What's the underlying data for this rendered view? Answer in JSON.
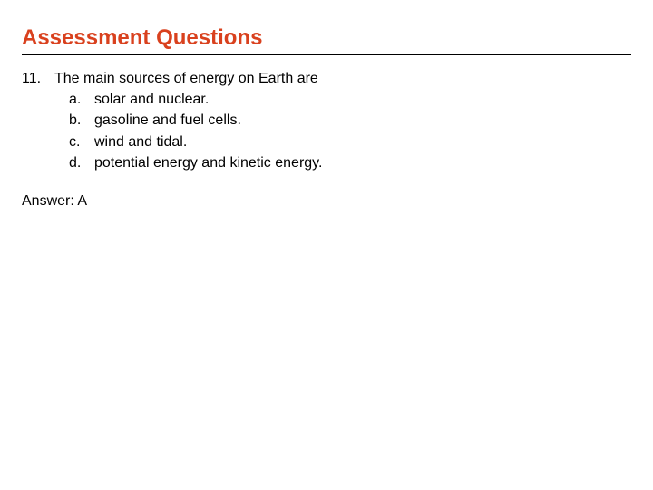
{
  "heading": {
    "text": "Assessment Questions",
    "color": "#d9411e",
    "fontsize": 24,
    "underline_color": "#000000"
  },
  "question": {
    "number": "11.",
    "stem": "The main sources of energy on Earth are",
    "options": [
      {
        "letter": "a.",
        "text": "solar and nuclear."
      },
      {
        "letter": "b.",
        "text": "gasoline and fuel cells."
      },
      {
        "letter": "c.",
        "text": "wind and tidal."
      },
      {
        "letter": "d.",
        "text": "potential energy and kinetic energy."
      }
    ]
  },
  "answer": {
    "label": "Answer: A"
  },
  "styles": {
    "body_bg": "#ffffff",
    "text_color": "#000000",
    "body_fontsize": 16
  }
}
